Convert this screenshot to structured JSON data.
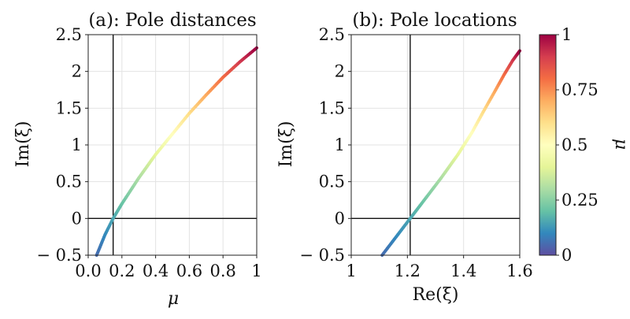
{
  "chart_data": [
    {
      "type": "line",
      "title": "(a): Pole distances",
      "xlabel": "μ",
      "ylabel": "Im(ξ)",
      "xlim": [
        0,
        1
      ],
      "ylim": [
        -0.5,
        2.5
      ],
      "xticks": [
        "0.0",
        "0.2",
        "0.4",
        "0.6",
        "0.8",
        "1"
      ],
      "yticks": [
        "− 0.5",
        "0",
        "0.5",
        "1",
        "1.5",
        "2",
        "2.5"
      ],
      "grid": true,
      "reference_lines": {
        "x": 0.148,
        "y": 0
      },
      "color_by": "μ",
      "points": [
        {
          "x": 0.05,
          "y": -0.5
        },
        {
          "x": 0.1,
          "y": -0.22
        },
        {
          "x": 0.148,
          "y": 0.0
        },
        {
          "x": 0.2,
          "y": 0.2
        },
        {
          "x": 0.3,
          "y": 0.55
        },
        {
          "x": 0.4,
          "y": 0.87
        },
        {
          "x": 0.5,
          "y": 1.15
        },
        {
          "x": 0.6,
          "y": 1.43
        },
        {
          "x": 0.7,
          "y": 1.68
        },
        {
          "x": 0.8,
          "y": 1.92
        },
        {
          "x": 0.9,
          "y": 2.13
        },
        {
          "x": 1.0,
          "y": 2.32
        }
      ]
    },
    {
      "type": "line",
      "title": "(b): Pole locations",
      "xlabel": "Re(ξ)",
      "ylabel": "Im(ξ)",
      "xlim": [
        1,
        1.6
      ],
      "ylim": [
        -0.5,
        2.5
      ],
      "xticks": [
        "1",
        "1.2",
        "1.4",
        "1.6"
      ],
      "yticks": [
        "− 0.5",
        "0",
        "0.5",
        "1",
        "1.5",
        "2",
        "2.5"
      ],
      "grid": true,
      "reference_lines": {
        "x": 1.21,
        "y": 0
      },
      "color_by": "μ",
      "points": [
        {
          "x": 1.11,
          "y": -0.5,
          "mu": 0.05
        },
        {
          "x": 1.16,
          "y": -0.25,
          "mu": 0.1
        },
        {
          "x": 1.21,
          "y": 0.0,
          "mu": 0.148
        },
        {
          "x": 1.25,
          "y": 0.2,
          "mu": 0.2
        },
        {
          "x": 1.32,
          "y": 0.55,
          "mu": 0.3
        },
        {
          "x": 1.38,
          "y": 0.87,
          "mu": 0.4
        },
        {
          "x": 1.43,
          "y": 1.17,
          "mu": 0.5
        },
        {
          "x": 1.47,
          "y": 1.45,
          "mu": 0.6
        },
        {
          "x": 1.51,
          "y": 1.72,
          "mu": 0.7
        },
        {
          "x": 1.545,
          "y": 1.96,
          "mu": 0.8
        },
        {
          "x": 1.575,
          "y": 2.15,
          "mu": 0.9
        },
        {
          "x": 1.6,
          "y": 2.28,
          "mu": 1.0
        }
      ]
    }
  ],
  "colorbar": {
    "label": "μ",
    "range": [
      0,
      1
    ],
    "ticks": [
      "0",
      "0.25",
      "0.5",
      "0.75",
      "1"
    ],
    "colormap": "Spectral_r",
    "stops": [
      "#5e4fa2",
      "#3288bd",
      "#66c2a5",
      "#abdda4",
      "#e6f598",
      "#ffffbf",
      "#fee08b",
      "#fdae61",
      "#f46d43",
      "#d53e4f",
      "#9e0142"
    ]
  }
}
